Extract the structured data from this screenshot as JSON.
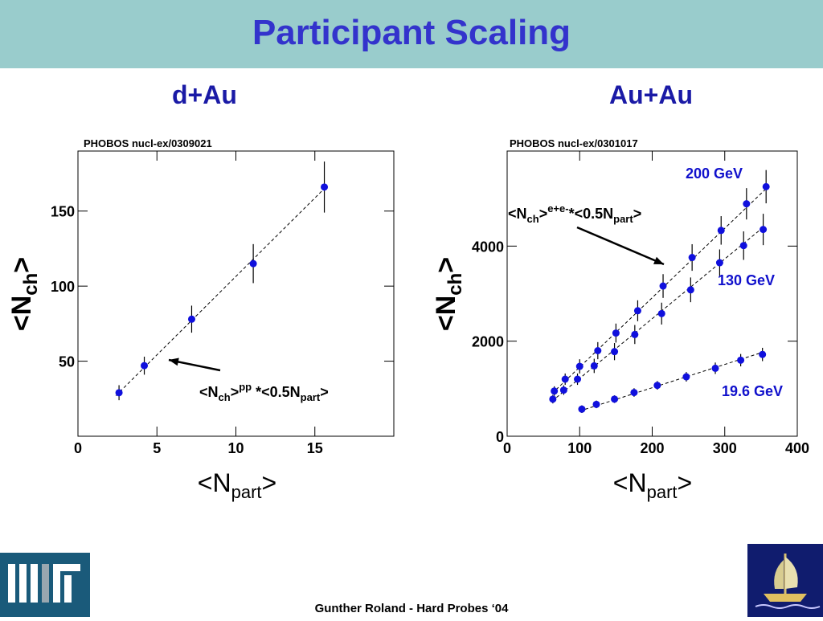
{
  "header": {
    "title": "Participant Scaling"
  },
  "footer": {
    "text": "Gunther Roland - Hard Probes ‘04"
  },
  "logos": {
    "left": "MIT logo",
    "right": "ship logo"
  },
  "colors": {
    "header_bg": "#99cccc",
    "title": "#3333cc",
    "panel_title": "#1a1aa6",
    "points": "#1010dd"
  },
  "chart_data": [
    {
      "type": "scatter",
      "title": "d+Au",
      "source": "PHOBOS nucl-ex/0309021",
      "xlabel": "<Npart>",
      "ylabel": "<Nch>",
      "xlim": [
        0,
        20
      ],
      "ylim": [
        0,
        190
      ],
      "x_ticks": [
        0,
        5,
        10,
        15
      ],
      "y_ticks": [
        50,
        100,
        150
      ],
      "grid": false,
      "series": [
        {
          "x": [
            2.6,
            4.2,
            7.2,
            11.1,
            15.6
          ],
          "y": [
            29,
            47,
            78,
            115,
            166
          ],
          "err": [
            5,
            6,
            9,
            13,
            17
          ]
        }
      ],
      "fit_line": {
        "x": [
          2.4,
          15.6
        ],
        "y": [
          27,
          165
        ]
      },
      "annotation": {
        "base": "<N",
        "sub1": "ch",
        "mid": ">",
        "sup": "pp",
        "tail": " *<0.5N",
        "sub2": "part",
        "end": ">"
      }
    },
    {
      "type": "scatter",
      "title": "Au+Au",
      "source": "PHOBOS nucl-ex/0301017",
      "xlabel": "<Npart>",
      "ylabel": "<Nch>",
      "xlim": [
        0,
        400
      ],
      "ylim": [
        0,
        6000
      ],
      "x_ticks": [
        0,
        100,
        200,
        300,
        400
      ],
      "y_ticks": [
        0,
        2000,
        4000
      ],
      "grid": false,
      "series": [
        {
          "name": "200 GeV",
          "x": [
            65,
            80,
            100,
            125,
            150,
            180,
            215,
            255,
            295,
            330,
            357
          ],
          "y": [
            950,
            1200,
            1470,
            1800,
            2170,
            2640,
            3160,
            3760,
            4330,
            4890,
            5250
          ],
          "err": [
            100,
            120,
            150,
            180,
            200,
            220,
            250,
            280,
            300,
            330,
            350
          ]
        },
        {
          "name": "130 GeV",
          "x": [
            63,
            78,
            97,
            120,
            148,
            176,
            213,
            253,
            293,
            326,
            353
          ],
          "y": [
            780,
            970,
            1200,
            1480,
            1780,
            2140,
            2580,
            3080,
            3650,
            4010,
            4350
          ],
          "err": [
            90,
            100,
            120,
            150,
            180,
            200,
            230,
            260,
            280,
            300,
            330
          ]
        },
        {
          "name": "19.6 GeV",
          "x": [
            103,
            123,
            148,
            175,
            207,
            247,
            287,
            322,
            352
          ],
          "y": [
            570,
            670,
            780,
            920,
            1070,
            1250,
            1430,
            1600,
            1720
          ],
          "err": [
            80,
            80,
            80,
            90,
            90,
            100,
            120,
            130,
            140
          ]
        }
      ],
      "fit_lines": [
        {
          "x": [
            62,
            360
          ],
          "y": [
            900,
            5250
          ]
        },
        {
          "x": [
            62,
            355
          ],
          "y": [
            740,
            4420
          ]
        },
        {
          "x": [
            100,
            355
          ],
          "y": [
            530,
            1780
          ]
        }
      ],
      "annotation": {
        "base": "<N",
        "sub1": "ch",
        "mid": ">",
        "sup": "e+e-",
        "tail": "*<0.5N",
        "sub2": "part",
        "end": ">"
      }
    }
  ]
}
